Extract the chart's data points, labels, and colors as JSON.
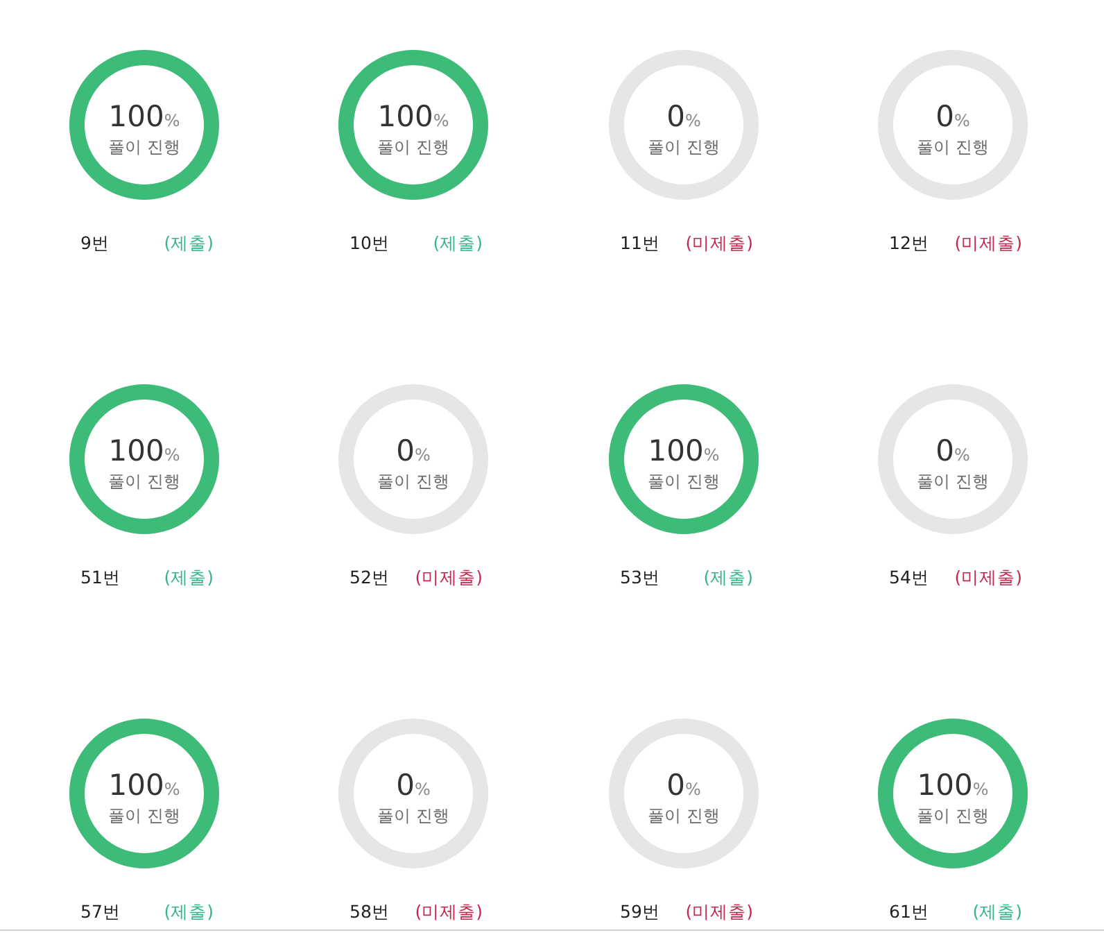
{
  "chart_data": [
    {
      "type": "other",
      "title": "9번",
      "subtitle": "풀이 진행",
      "values": [
        100
      ],
      "color": "#3dbb78",
      "value_labels": [
        "100%"
      ],
      "annotations": [
        "(제출)"
      ]
    },
    {
      "type": "other",
      "title": "10번",
      "subtitle": "풀이 진행",
      "values": [
        100
      ],
      "color": "#3dbb78",
      "value_labels": [
        "100%"
      ],
      "annotations": [
        "(제출)"
      ]
    },
    {
      "type": "other",
      "title": "11번",
      "subtitle": "풀이 진행",
      "values": [
        0
      ],
      "color": "#3dbb78",
      "value_labels": [
        "0%"
      ],
      "annotations": [
        "(미제출)"
      ]
    },
    {
      "type": "other",
      "title": "12번",
      "subtitle": "풀이 진행",
      "values": [
        0
      ],
      "color": "#3dbb78",
      "value_labels": [
        "0%"
      ],
      "annotations": [
        "(미제출)"
      ]
    },
    {
      "type": "other",
      "title": "51번",
      "subtitle": "풀이 진행",
      "values": [
        100
      ],
      "color": "#3dbb78",
      "value_labels": [
        "100%"
      ],
      "annotations": [
        "(제출)"
      ]
    },
    {
      "type": "other",
      "title": "52번",
      "subtitle": "풀이 진행",
      "values": [
        0
      ],
      "color": "#3dbb78",
      "value_labels": [
        "0%"
      ],
      "annotations": [
        "(미제출)"
      ]
    },
    {
      "type": "other",
      "title": "53번",
      "subtitle": "풀이 진행",
      "values": [
        100
      ],
      "color": "#3dbb78",
      "value_labels": [
        "100%"
      ],
      "annotations": [
        "(제출)"
      ]
    },
    {
      "type": "other",
      "title": "54번",
      "subtitle": "풀이 진행",
      "values": [
        0
      ],
      "color": "#3dbb78",
      "value_labels": [
        "0%"
      ],
      "annotations": [
        "(미제출)"
      ]
    },
    {
      "type": "other",
      "title": "57번",
      "subtitle": "풀이 진행",
      "values": [
        100
      ],
      "color": "#3dbb78",
      "value_labels": [
        "100%"
      ],
      "annotations": [
        "(제출)"
      ]
    },
    {
      "type": "other",
      "title": "58번",
      "subtitle": "풀이 진행",
      "values": [
        0
      ],
      "color": "#3dbb78",
      "value_labels": [
        "0%"
      ],
      "annotations": [
        "(미제출)"
      ]
    },
    {
      "type": "other",
      "title": "59번",
      "subtitle": "풀이 진행",
      "values": [
        0
      ],
      "color": "#3dbb78",
      "value_labels": [
        "0%"
      ],
      "annotations": [
        "(미제출)"
      ]
    },
    {
      "type": "other",
      "title": "61번",
      "subtitle": "풀이 진행",
      "values": [
        100
      ],
      "color": "#3dbb78",
      "value_labels": [
        "100%"
      ],
      "annotations": [
        "(제출)"
      ]
    }
  ]
}
